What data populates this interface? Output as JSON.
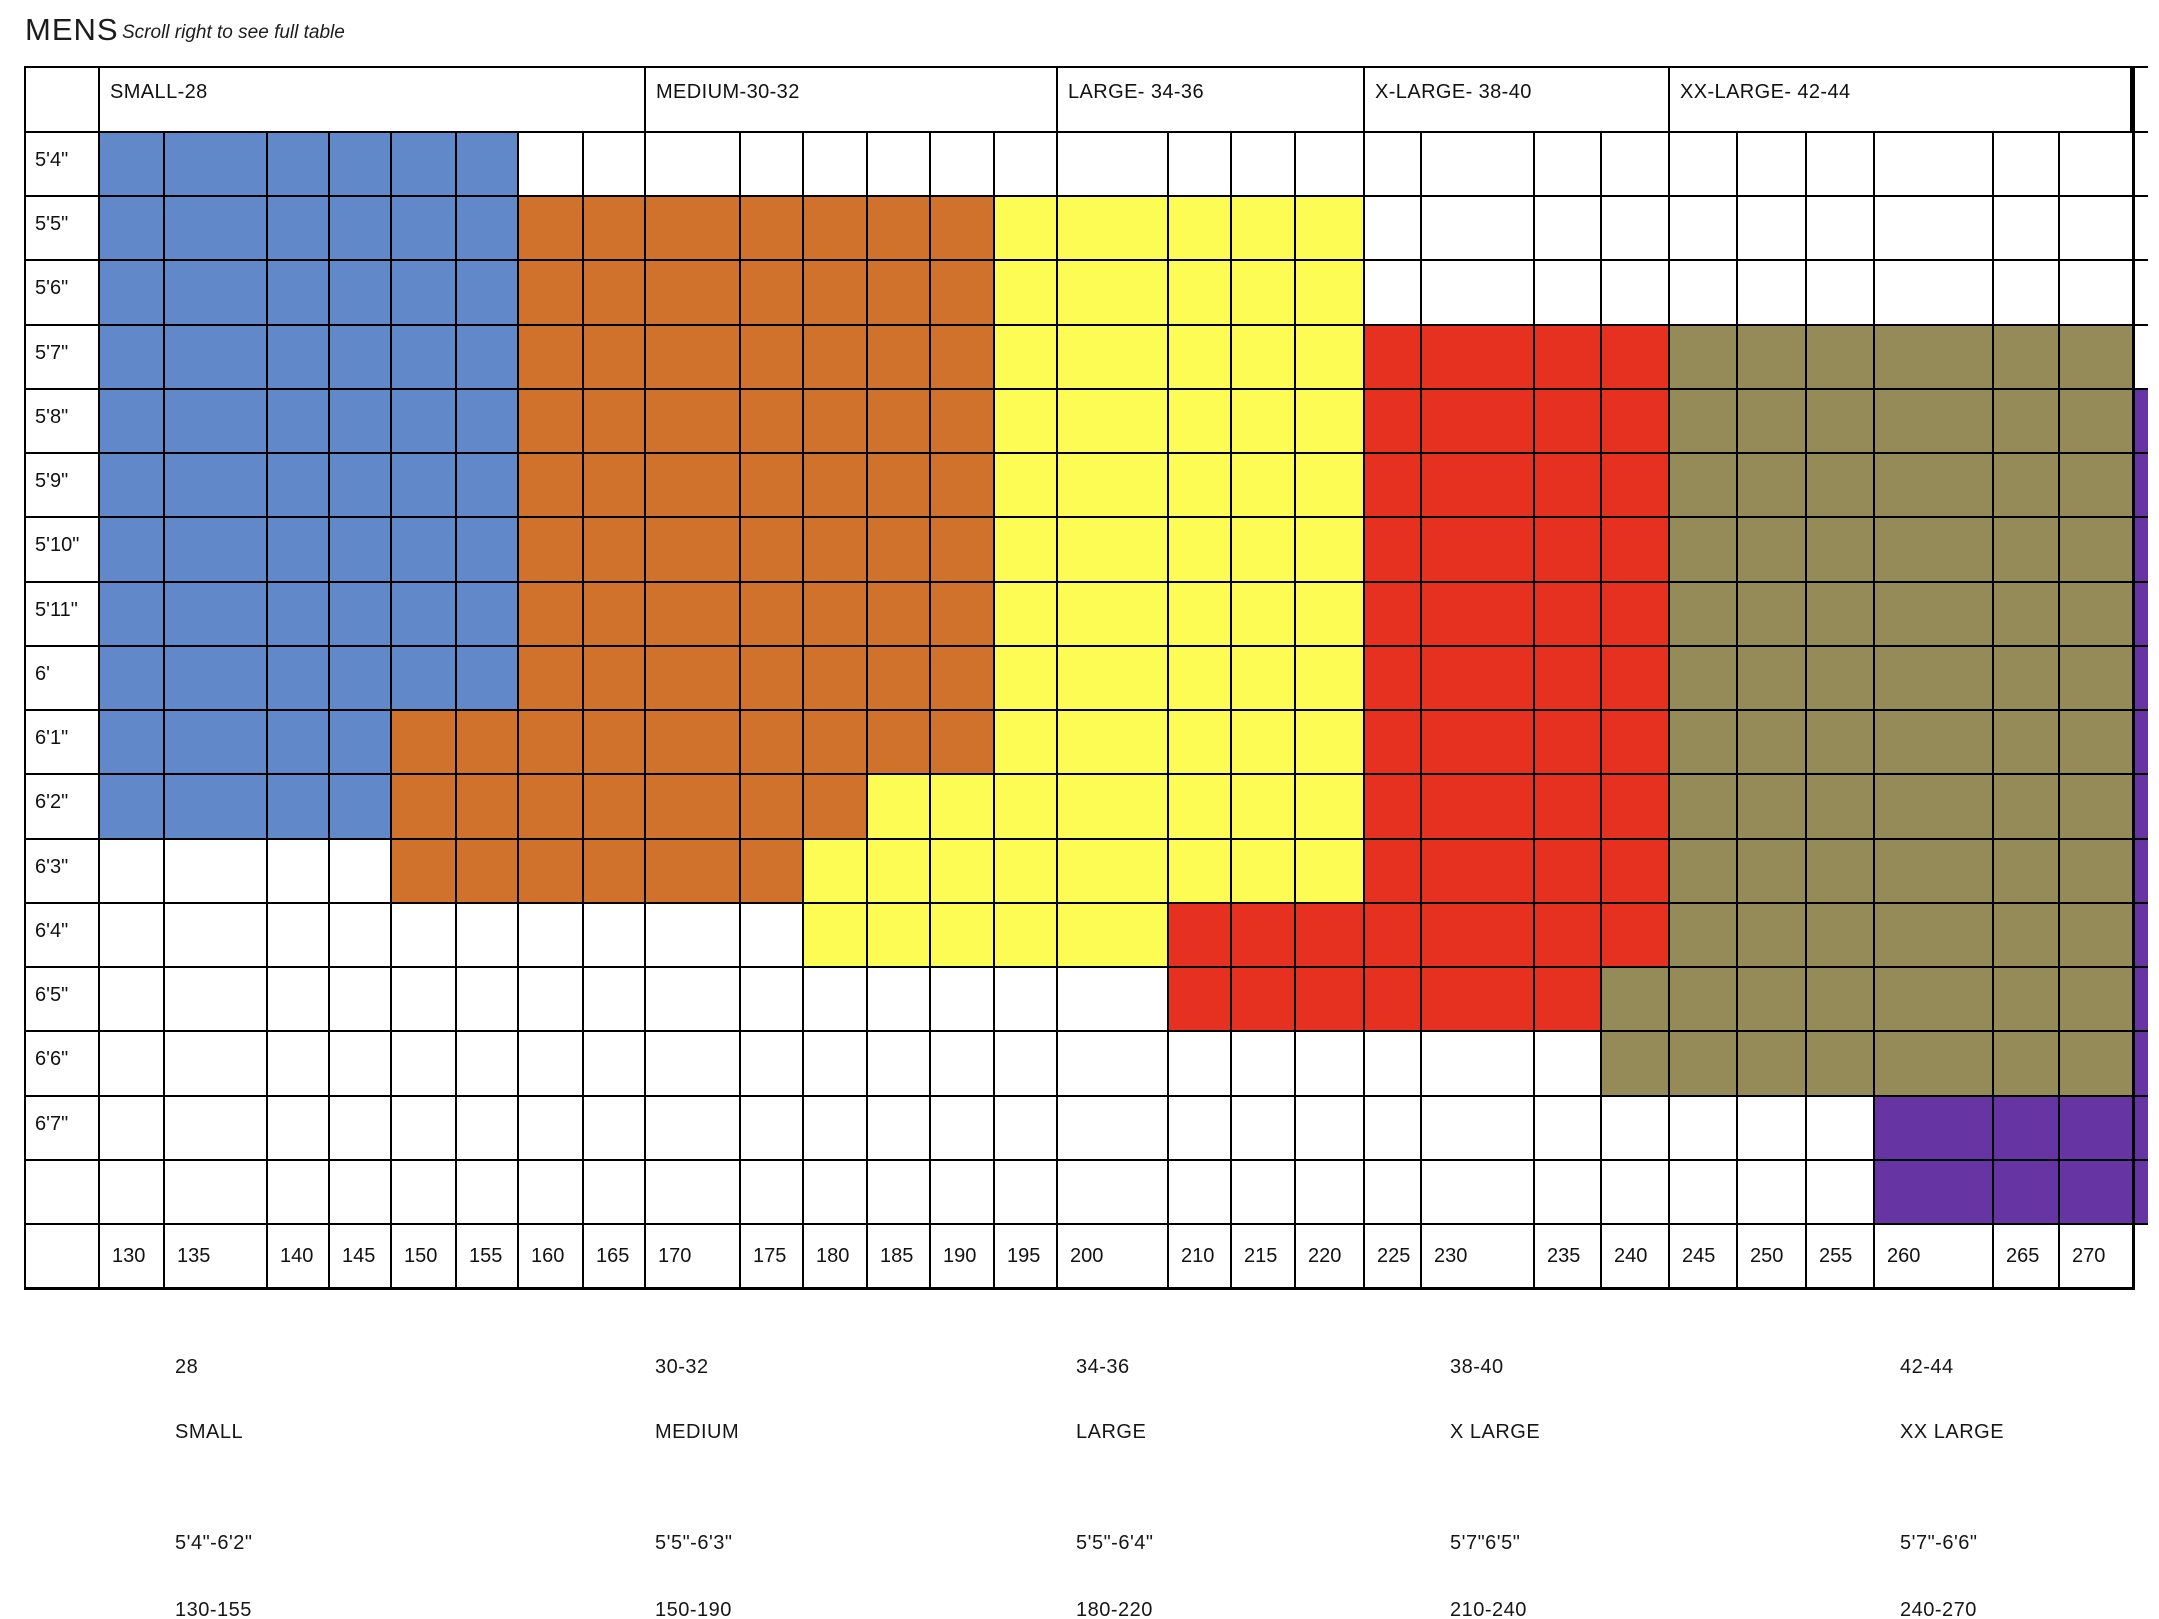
{
  "title": "MENS",
  "scroll_hint": "Scroll right to see full table",
  "chart_data": {
    "type": "heatmap",
    "title": "MENS",
    "subtitle": "Scroll right to see full table",
    "x_categories_weights_lbs": [
      "130",
      "135",
      "140",
      "145",
      "150",
      "155",
      "160",
      "165",
      "170",
      "175",
      "180",
      "185",
      "190",
      "195",
      "200",
      "210",
      "215",
      "220",
      "225",
      "230",
      "235",
      "240",
      "245",
      "250",
      "255",
      "260",
      "265",
      "270"
    ],
    "y_categories_heights": [
      "5'4\"",
      "5'5\"",
      "5'6\"",
      "5'7\"",
      "5'8\"",
      "5'9\"",
      "5'10\"",
      "5'11\"",
      "6'",
      "6'1\"",
      "6'2\"",
      "6'3\"",
      "6'4\"",
      "6'5\"",
      "6'6\"",
      "6'7\"",
      ""
    ],
    "header_groups": [
      {
        "label": "SMALL-28",
        "from": "130",
        "to": "165"
      },
      {
        "label": "MEDIUM-30-32",
        "from": "170",
        "to": "195"
      },
      {
        "label": "LARGE- 34-36",
        "from": "200",
        "to": "220"
      },
      {
        "label": "X-LARGE- 38-40",
        "from": "225",
        "to": "240"
      },
      {
        "label": "XX-LARGE- 42-44",
        "from": "245",
        "to": "270"
      }
    ],
    "size_colors": {
      "small": "#6189C9",
      "medium": "#D0722C",
      "large": "#FCFC54",
      "xlarge": "#E63120",
      "xxlarge": "#948B59",
      "xxxlarge": "#6634A3"
    },
    "grid_line_color": "#000000",
    "regions": [
      {
        "row": "5'4\"",
        "spans": [
          [
            "small",
            "130",
            "155"
          ]
        ]
      },
      {
        "row": "5'5\"",
        "spans": [
          [
            "small",
            "130",
            "155"
          ],
          [
            "medium",
            "160",
            "190"
          ],
          [
            "large",
            "195",
            "220"
          ]
        ]
      },
      {
        "row": "5'6\"",
        "spans": [
          [
            "small",
            "130",
            "155"
          ],
          [
            "medium",
            "160",
            "190"
          ],
          [
            "large",
            "195",
            "220"
          ]
        ]
      },
      {
        "row": "5'7\"",
        "spans": [
          [
            "small",
            "130",
            "155"
          ],
          [
            "medium",
            "160",
            "190"
          ],
          [
            "large",
            "195",
            "220"
          ],
          [
            "xlarge",
            "225",
            "240"
          ],
          [
            "xxlarge",
            "245",
            "270"
          ]
        ]
      },
      {
        "row": "5'8\"",
        "spans": [
          [
            "small",
            "130",
            "155"
          ],
          [
            "medium",
            "160",
            "190"
          ],
          [
            "large",
            "195",
            "220"
          ],
          [
            "xlarge",
            "225",
            "240"
          ],
          [
            "xxlarge",
            "245",
            "270"
          ]
        ]
      },
      {
        "row": "5'9\"",
        "spans": [
          [
            "small",
            "130",
            "155"
          ],
          [
            "medium",
            "160",
            "190"
          ],
          [
            "large",
            "195",
            "220"
          ],
          [
            "xlarge",
            "225",
            "240"
          ],
          [
            "xxlarge",
            "245",
            "270"
          ]
        ]
      },
      {
        "row": "5'10\"",
        "spans": [
          [
            "small",
            "130",
            "155"
          ],
          [
            "medium",
            "160",
            "190"
          ],
          [
            "large",
            "195",
            "220"
          ],
          [
            "xlarge",
            "225",
            "240"
          ],
          [
            "xxlarge",
            "245",
            "270"
          ]
        ]
      },
      {
        "row": "5'11\"",
        "spans": [
          [
            "small",
            "130",
            "155"
          ],
          [
            "medium",
            "160",
            "190"
          ],
          [
            "large",
            "195",
            "220"
          ],
          [
            "xlarge",
            "225",
            "240"
          ],
          [
            "xxlarge",
            "245",
            "270"
          ]
        ]
      },
      {
        "row": "6'",
        "spans": [
          [
            "small",
            "130",
            "155"
          ],
          [
            "medium",
            "160",
            "190"
          ],
          [
            "large",
            "195",
            "220"
          ],
          [
            "xlarge",
            "225",
            "240"
          ],
          [
            "xxlarge",
            "245",
            "270"
          ]
        ]
      },
      {
        "row": "6'1\"",
        "spans": [
          [
            "small",
            "130",
            "145"
          ],
          [
            "medium",
            "150",
            "190"
          ],
          [
            "large",
            "195",
            "220"
          ],
          [
            "xlarge",
            "225",
            "240"
          ],
          [
            "xxlarge",
            "245",
            "270"
          ]
        ]
      },
      {
        "row": "6'2\"",
        "spans": [
          [
            "small",
            "130",
            "145"
          ],
          [
            "medium",
            "150",
            "180"
          ],
          [
            "large",
            "185",
            "220"
          ],
          [
            "xlarge",
            "225",
            "240"
          ],
          [
            "xxlarge",
            "245",
            "270"
          ]
        ]
      },
      {
        "row": "6'3\"",
        "spans": [
          [
            "medium",
            "150",
            "175"
          ],
          [
            "large",
            "180",
            "220"
          ],
          [
            "xlarge",
            "225",
            "240"
          ],
          [
            "xxlarge",
            "245",
            "270"
          ]
        ]
      },
      {
        "row": "6'4\"",
        "spans": [
          [
            "large",
            "180",
            "200"
          ],
          [
            "xlarge",
            "210",
            "240"
          ],
          [
            "xxlarge",
            "245",
            "270"
          ]
        ]
      },
      {
        "row": "6'5\"",
        "spans": [
          [
            "xlarge",
            "210",
            "235"
          ],
          [
            "xxlarge",
            "240",
            "270"
          ]
        ]
      },
      {
        "row": "6'6\"",
        "spans": [
          [
            "xxlarge",
            "240",
            "270"
          ]
        ]
      },
      {
        "row": "6'7\"",
        "spans": [
          [
            "xxxlarge",
            "260",
            "270"
          ]
        ]
      },
      {
        "row": "",
        "spans": [
          [
            "xxxlarge",
            "260",
            "270"
          ]
        ]
      }
    ],
    "right_edge_partial_column": {
      "color_key": "xxxlarge",
      "from_row": "5'8\"",
      "to_row": ""
    }
  },
  "legend": {
    "groups": [
      {
        "size": "28",
        "name": "SMALL",
        "heights": "5'4\"-6'2\"",
        "weights": "130-155"
      },
      {
        "size": "30-32",
        "name": "MEDIUM",
        "heights": "5'5\"-6'3\"",
        "weights": "150-190"
      },
      {
        "size": "34-36",
        "name": "LARGE",
        "heights": "5'5\"-6'4\"",
        "weights": "180-220"
      },
      {
        "size": "38-40",
        "name": "X LARGE",
        "heights": "5'7\"6'5\"",
        "weights": "210-240"
      },
      {
        "size": "42-44",
        "name": "XX LARGE",
        "heights": "5'7\"-6'6\"",
        "weights": "240-270"
      }
    ]
  }
}
